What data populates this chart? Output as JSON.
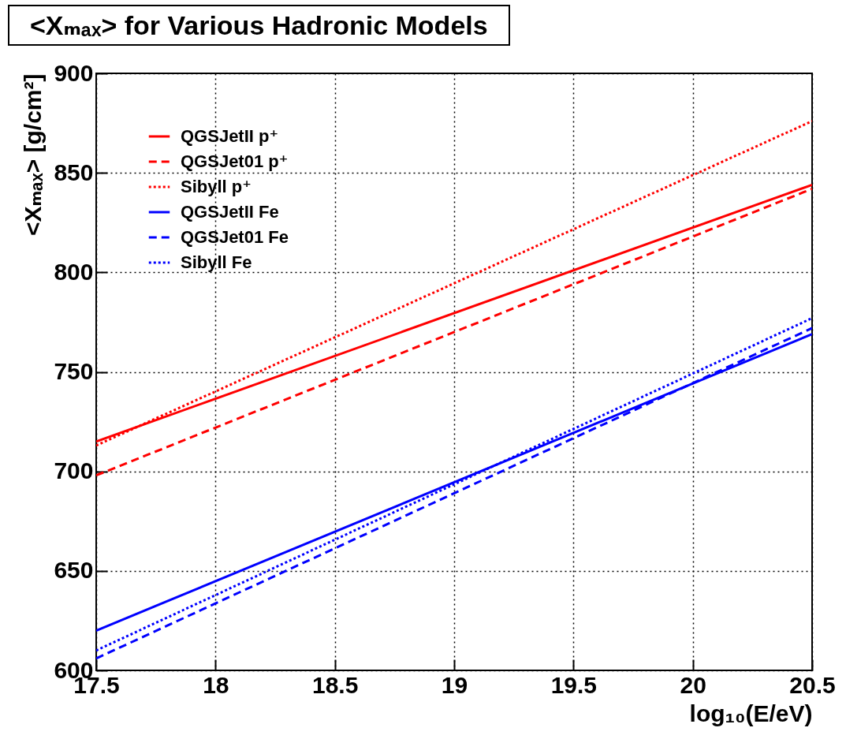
{
  "chart_data": {
    "type": "line",
    "title": "<Xₘₐₓ> for Various Hadronic Models",
    "xlabel": "log₁₀(E/eV)",
    "ylabel": "<Xₘₐₓ> [g/cm²]",
    "x": [
      17.5,
      20.5
    ],
    "xlim": [
      17.5,
      20.5
    ],
    "xticks": [
      17.5,
      18,
      18.5,
      19,
      19.5,
      20,
      20.5
    ],
    "ylim": [
      600,
      900
    ],
    "yticks": [
      600,
      650,
      700,
      750,
      800,
      850,
      900
    ],
    "grid": true,
    "legend": "top left",
    "series": [
      {
        "name": "QGSJetII p⁺",
        "color": "#ff0000",
        "line_style": "solid",
        "values": [
          715,
          844
        ]
      },
      {
        "name": "QGSJet01 p⁺",
        "color": "#ff0000",
        "line_style": "dashed",
        "values": [
          698,
          842
        ]
      },
      {
        "name": "Sibyll p⁺",
        "color": "#ff0000",
        "line_style": "dotted",
        "values": [
          713,
          876
        ]
      },
      {
        "name": "QGSJetII Fe",
        "color": "#0000ff",
        "line_style": "solid",
        "values": [
          620,
          769
        ]
      },
      {
        "name": "QGSJet01 Fe",
        "color": "#0000ff",
        "line_style": "dashed",
        "values": [
          606,
          772
        ]
      },
      {
        "name": "Sibyll Fe",
        "color": "#0000ff",
        "line_style": "dotted",
        "values": [
          610,
          777
        ]
      }
    ]
  }
}
